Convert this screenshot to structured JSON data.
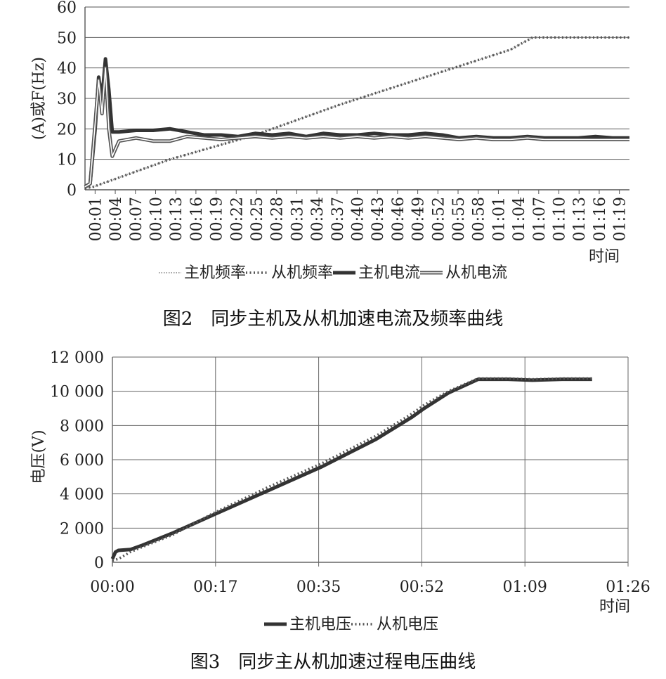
{
  "chart_data": [
    {
      "type": "line",
      "caption": "图2　同步主机及从机加速电流及频率曲线",
      "ylabel": "(A)或F(Hz)",
      "xlabel": "时间",
      "ylim": [
        0,
        60
      ],
      "yticks": [
        "0",
        "10",
        "20",
        "30",
        "40",
        "50",
        "60"
      ],
      "categories": [
        "00:01",
        "00:04",
        "00:07",
        "00:10",
        "00:13",
        "00:16",
        "00:19",
        "00:22",
        "00:25",
        "00:28",
        "00:31",
        "00:34",
        "00:37",
        "00:40",
        "00:43",
        "00:46",
        "00:49",
        "00:52",
        "00:55",
        "00:58",
        "01:01",
        "01:04",
        "01:07",
        "01:10",
        "01:13",
        "01:16",
        "01:19"
      ],
      "grid": "horizontal",
      "legend_position": "bottom",
      "series": [
        {
          "name": "主机频率",
          "style": "fine-dotted",
          "color": "#9a9a9a",
          "points": [
            [
              0,
              0.5
            ],
            [
              0.5,
              1
            ],
            [
              1,
              2
            ],
            [
              5,
              10
            ],
            [
              10,
              18
            ],
            [
              15,
              28
            ],
            [
              20,
              37
            ],
            [
              25,
              46
            ],
            [
              26.3,
              50
            ],
            [
              32,
              50
            ]
          ]
        },
        {
          "name": "从机频率",
          "style": "dotted",
          "color": "#555555",
          "points": [
            [
              0,
              0.5
            ],
            [
              0.5,
              1
            ],
            [
              1,
              2
            ],
            [
              5,
              10
            ],
            [
              10,
              18
            ],
            [
              15,
              28
            ],
            [
              20,
              37
            ],
            [
              25,
              46
            ],
            [
              26.3,
              50
            ],
            [
              32,
              50
            ]
          ]
        },
        {
          "name": "主机电流",
          "style": "thick",
          "color": "#333333",
          "points": [
            [
              0,
              1
            ],
            [
              0.3,
              2
            ],
            [
              0.6,
              20
            ],
            [
              0.8,
              37
            ],
            [
              1,
              30
            ],
            [
              1.2,
              43
            ],
            [
              1.4,
              33
            ],
            [
              1.6,
              19
            ],
            [
              2,
              19
            ],
            [
              3,
              19.5
            ],
            [
              4,
              19.5
            ],
            [
              5,
              20
            ],
            [
              6,
              19
            ],
            [
              7,
              18
            ],
            [
              8,
              18
            ],
            [
              9,
              17.5
            ],
            [
              10,
              18.5
            ],
            [
              11,
              18
            ],
            [
              12,
              18.5
            ],
            [
              13,
              17.5
            ],
            [
              14,
              18.5
            ],
            [
              15,
              18
            ],
            [
              16,
              18
            ],
            [
              17,
              18.5
            ],
            [
              18,
              18
            ],
            [
              19,
              18
            ],
            [
              20,
              18.5
            ],
            [
              21,
              18
            ],
            [
              22,
              17
            ],
            [
              23,
              17.5
            ],
            [
              24,
              17
            ],
            [
              25,
              17
            ],
            [
              26,
              17.5
            ],
            [
              27,
              17
            ],
            [
              28,
              17
            ],
            [
              29,
              17
            ],
            [
              30,
              17.5
            ],
            [
              31,
              17
            ],
            [
              32,
              17
            ]
          ]
        },
        {
          "name": "从机电流",
          "style": "double",
          "color": "#555555",
          "points": [
            [
              0,
              1
            ],
            [
              0.3,
              2
            ],
            [
              0.6,
              22
            ],
            [
              0.8,
              36
            ],
            [
              1,
              25
            ],
            [
              1.2,
              40
            ],
            [
              1.4,
              20
            ],
            [
              1.6,
              11
            ],
            [
              2,
              16
            ],
            [
              3,
              17
            ],
            [
              4,
              16
            ],
            [
              5,
              16
            ],
            [
              6,
              17.5
            ],
            [
              7,
              17
            ],
            [
              8,
              16.5
            ],
            [
              9,
              17
            ],
            [
              10,
              17.5
            ],
            [
              11,
              17
            ],
            [
              12,
              17.5
            ],
            [
              13,
              17
            ],
            [
              14,
              17.5
            ],
            [
              15,
              17
            ],
            [
              16,
              17.5
            ],
            [
              17,
              17
            ],
            [
              18,
              17.5
            ],
            [
              19,
              17
            ],
            [
              20,
              17.5
            ],
            [
              21,
              17
            ],
            [
              22,
              16.5
            ],
            [
              23,
              17
            ],
            [
              24,
              16.5
            ],
            [
              25,
              16.5
            ],
            [
              26,
              17
            ],
            [
              27,
              16.5
            ],
            [
              28,
              16.5
            ],
            [
              29,
              16.5
            ],
            [
              30,
              16.5
            ],
            [
              31,
              16.5
            ],
            [
              32,
              16.5
            ]
          ]
        }
      ]
    },
    {
      "type": "line",
      "caption": "图3　同步主从机加速过程电压曲线",
      "ylabel": "电压(V)",
      "xlabel": "时间",
      "ylim": [
        0,
        12000
      ],
      "yticks": [
        "0",
        "2 000",
        "4 000",
        "6 000",
        "8 000",
        "10 000",
        "12 000"
      ],
      "xlim_seconds": [
        0,
        86
      ],
      "xticks": [
        "00:00",
        "00:17",
        "00:35",
        "00:52",
        "01:09",
        "01:26"
      ],
      "grid": "both",
      "legend_position": "bottom",
      "series": [
        {
          "name": "主机电压",
          "style": "thick",
          "color": "#333333",
          "points": [
            [
              0,
              200
            ],
            [
              0.5,
              600
            ],
            [
              1,
              700
            ],
            [
              3,
              750
            ],
            [
              5,
              1000
            ],
            [
              10,
              1700
            ],
            [
              17,
              2800
            ],
            [
              26,
              4200
            ],
            [
              35,
              5600
            ],
            [
              44,
              7200
            ],
            [
              50,
              8500
            ],
            [
              52,
              9000
            ],
            [
              56,
              9900
            ],
            [
              61,
              10700
            ],
            [
              66,
              10700
            ],
            [
              70,
              10650
            ],
            [
              75,
              10700
            ],
            [
              80,
              10700
            ]
          ]
        },
        {
          "name": "从机电压",
          "style": "dotted",
          "color": "#555555",
          "points": [
            [
              0,
              100
            ],
            [
              1,
              200
            ],
            [
              2,
              400
            ],
            [
              3,
              600
            ],
            [
              5,
              900
            ],
            [
              10,
              1600
            ],
            [
              17,
              2900
            ],
            [
              26,
              4400
            ],
            [
              35,
              5800
            ],
            [
              44,
              7400
            ],
            [
              50,
              8700
            ],
            [
              52,
              9200
            ],
            [
              56,
              10000
            ],
            [
              61,
              10750
            ],
            [
              66,
              10750
            ],
            [
              70,
              10700
            ],
            [
              75,
              10750
            ],
            [
              80,
              10750
            ]
          ]
        }
      ]
    }
  ]
}
